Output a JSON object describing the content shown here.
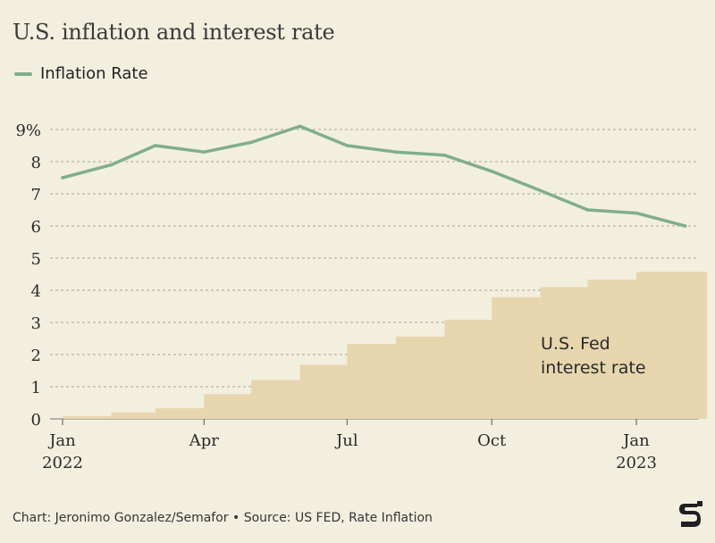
{
  "header": {
    "title": "U.S. inflation and interest rate"
  },
  "legend": {
    "inflation_label": "Inflation Rate"
  },
  "colors": {
    "inflation_line": "#7fae8c",
    "fed_rate_area": "#e7d5ad",
    "grid": "#8a8a8a",
    "background": "#f3efdf"
  },
  "footer": {
    "credit": "Chart: Jeronimo Gonzalez/Semafor • Source: US FED, Rate Inflation"
  },
  "brand": {
    "logo_icon": "semafor-logo-icon"
  },
  "chart_data": {
    "type": "line",
    "title": "U.S. inflation and interest rate",
    "x_ticks": [
      {
        "date": "2022-01-01",
        "label": "Jan",
        "sublabel": "2022"
      },
      {
        "date": "2022-04-01",
        "label": "Apr",
        "sublabel": ""
      },
      {
        "date": "2022-07-01",
        "label": "Jul",
        "sublabel": ""
      },
      {
        "date": "2022-10-01",
        "label": "Oct",
        "sublabel": ""
      },
      {
        "date": "2023-01-01",
        "label": "Jan",
        "sublabel": "2023"
      }
    ],
    "y_ticks": [
      {
        "value": 0,
        "label": "0"
      },
      {
        "value": 1,
        "label": "1"
      },
      {
        "value": 2,
        "label": "2"
      },
      {
        "value": 3,
        "label": "3"
      },
      {
        "value": 4,
        "label": "4"
      },
      {
        "value": 5,
        "label": "5"
      },
      {
        "value": 6,
        "label": "6"
      },
      {
        "value": 7,
        "label": "7"
      },
      {
        "value": 8,
        "label": "8"
      },
      {
        "value": 9,
        "label": "9%"
      }
    ],
    "ylim": [
      0,
      9
    ],
    "grid": true,
    "series": [
      {
        "name": "Inflation Rate",
        "type": "line",
        "points": [
          {
            "date": "2022-01-01",
            "value": 7.5
          },
          {
            "date": "2022-02-01",
            "value": 7.9
          },
          {
            "date": "2022-03-01",
            "value": 8.5
          },
          {
            "date": "2022-04-01",
            "value": 8.3
          },
          {
            "date": "2022-05-01",
            "value": 8.6
          },
          {
            "date": "2022-06-01",
            "value": 9.1
          },
          {
            "date": "2022-07-01",
            "value": 8.5
          },
          {
            "date": "2022-08-01",
            "value": 8.3
          },
          {
            "date": "2022-09-01",
            "value": 8.2
          },
          {
            "date": "2022-10-01",
            "value": 7.7
          },
          {
            "date": "2022-11-01",
            "value": 7.1
          },
          {
            "date": "2022-12-01",
            "value": 6.5
          },
          {
            "date": "2023-01-01",
            "value": 6.4
          },
          {
            "date": "2023-02-01",
            "value": 6.0
          }
        ]
      },
      {
        "name": "U.S. Fed interest rate",
        "type": "step-area",
        "end_date": "2023-02-15",
        "points": [
          {
            "date": "2022-01-01",
            "value": 0.08
          },
          {
            "date": "2022-02-01",
            "value": 0.2
          },
          {
            "date": "2022-03-01",
            "value": 0.33
          },
          {
            "date": "2022-04-01",
            "value": 0.77
          },
          {
            "date": "2022-05-01",
            "value": 1.21
          },
          {
            "date": "2022-06-01",
            "value": 1.68
          },
          {
            "date": "2022-07-01",
            "value": 2.33
          },
          {
            "date": "2022-08-01",
            "value": 2.56
          },
          {
            "date": "2022-09-01",
            "value": 3.08
          },
          {
            "date": "2022-10-01",
            "value": 3.78
          },
          {
            "date": "2022-11-01",
            "value": 4.1
          },
          {
            "date": "2022-12-01",
            "value": 4.33
          },
          {
            "date": "2023-01-01",
            "value": 4.57
          }
        ]
      }
    ],
    "annotations": [
      {
        "text": "U.S. Fed",
        "series": "U.S. Fed interest rate"
      },
      {
        "text": "interest rate",
        "series": "U.S. Fed interest rate"
      }
    ]
  }
}
